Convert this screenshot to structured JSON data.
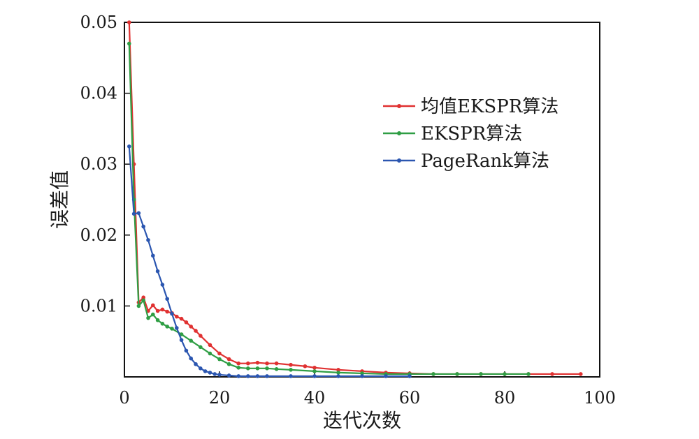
{
  "chart_data": {
    "type": "line",
    "xlabel": "迭代次数",
    "ylabel": "误差值",
    "xlim": [
      0,
      100
    ],
    "ylim": [
      0,
      0.05
    ],
    "xticks": [
      0,
      20,
      40,
      60,
      80,
      100
    ],
    "yticks": [
      0.01,
      0.02,
      0.03,
      0.04,
      0.05
    ],
    "xtick_labels": [
      "0",
      "20",
      "40",
      "60",
      "80",
      "100"
    ],
    "ytick_labels": [
      "0.01",
      "0.02",
      "0.03",
      "0.04",
      "0.05"
    ],
    "grid": false,
    "legend_position": "top-right",
    "series": [
      {
        "name": "均值EKSPR算法",
        "color": "#e03131",
        "x": [
          1,
          2,
          3,
          4,
          5,
          6,
          7,
          8,
          9,
          10,
          11,
          12,
          13,
          14,
          15,
          16,
          18,
          20,
          22,
          24,
          26,
          28,
          30,
          32,
          35,
          38,
          40,
          45,
          50,
          55,
          60,
          65,
          70,
          75,
          80,
          85,
          90,
          96
        ],
        "y": [
          0.05,
          0.03,
          0.0105,
          0.0112,
          0.0093,
          0.0101,
          0.0093,
          0.0095,
          0.0092,
          0.009,
          0.0085,
          0.0082,
          0.0077,
          0.0071,
          0.0065,
          0.0058,
          0.0045,
          0.0033,
          0.0025,
          0.0019,
          0.0019,
          0.002,
          0.0019,
          0.0019,
          0.0017,
          0.0015,
          0.0013,
          0.001,
          0.0008,
          0.0006,
          0.0005,
          0.0004,
          0.0004,
          0.0004,
          0.0004,
          0.0004,
          0.0004,
          0.0004
        ]
      },
      {
        "name": "EKSPR算法",
        "color": "#2f9e44",
        "x": [
          1,
          2,
          3,
          4,
          5,
          6,
          7,
          8,
          9,
          10,
          12,
          14,
          16,
          18,
          20,
          22,
          24,
          26,
          28,
          30,
          32,
          35,
          40,
          45,
          50,
          55,
          60,
          65,
          70,
          75,
          80,
          85
        ],
        "y": [
          0.047,
          0.025,
          0.01,
          0.0108,
          0.0083,
          0.0088,
          0.008,
          0.0075,
          0.0071,
          0.0068,
          0.006,
          0.0051,
          0.0042,
          0.0033,
          0.0025,
          0.0018,
          0.0013,
          0.0012,
          0.0012,
          0.0012,
          0.0011,
          0.001,
          0.0008,
          0.0006,
          0.0005,
          0.0004,
          0.0004,
          0.0004,
          0.0004,
          0.0004,
          0.0004,
          0.0004
        ]
      },
      {
        "name": "PageRank算法",
        "color": "#2b56b0",
        "x": [
          1,
          2,
          3,
          4,
          5,
          6,
          7,
          8,
          9,
          10,
          11,
          12,
          13,
          14,
          15,
          16,
          17,
          18,
          19,
          20,
          22,
          24,
          26,
          28,
          30,
          35,
          40,
          45,
          50,
          55,
          60
        ],
        "y": [
          0.0325,
          0.023,
          0.0231,
          0.0212,
          0.0193,
          0.0171,
          0.0149,
          0.013,
          0.011,
          0.0089,
          0.0069,
          0.0052,
          0.0037,
          0.0026,
          0.0018,
          0.0012,
          0.0008,
          0.0006,
          0.0004,
          0.0003,
          0.0002,
          0.0001,
          0.0001,
          0.0001,
          0.0001,
          0.0001,
          0.0001,
          0.0001,
          0.0001,
          0.0001,
          0.0001
        ]
      }
    ]
  }
}
